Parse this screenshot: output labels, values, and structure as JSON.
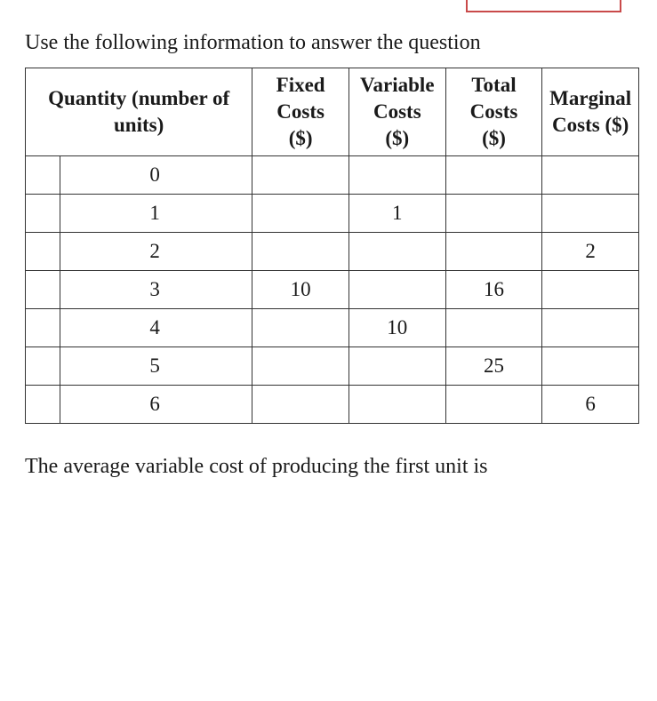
{
  "intro": "Use the following information to answer the question",
  "table": {
    "type": "table",
    "columns": [
      "Quantity (number of units)",
      "Fixed Costs ($)",
      "Variable Costs ($)",
      "Total Costs ($)",
      "Marginal Costs ($)"
    ],
    "header_lines": {
      "col0_l1": "Quantity (number of",
      "col0_l2": "units)",
      "col1_l1": "Fixed",
      "col1_l2": "Costs",
      "col1_l3": "($)",
      "col2_l1": "Variable",
      "col2_l2": "Costs",
      "col2_l3": "($)",
      "col3_l1": "Total",
      "col3_l2": "Costs",
      "col3_l3": "($)",
      "col4_l1": "Marginal",
      "col4_l2": "Costs ($)"
    },
    "rows": [
      {
        "quantity": "0",
        "fixed": "",
        "variable": "",
        "total": "",
        "marginal": ""
      },
      {
        "quantity": "1",
        "fixed": "",
        "variable": "1",
        "total": "",
        "marginal": ""
      },
      {
        "quantity": "2",
        "fixed": "",
        "variable": "",
        "total": "",
        "marginal": "2"
      },
      {
        "quantity": "3",
        "fixed": "10",
        "variable": "",
        "total": "16",
        "marginal": ""
      },
      {
        "quantity": "4",
        "fixed": "",
        "variable": "10",
        "total": "",
        "marginal": ""
      },
      {
        "quantity": "5",
        "fixed": "",
        "variable": "",
        "total": "25",
        "marginal": ""
      },
      {
        "quantity": "6",
        "fixed": "",
        "variable": "",
        "total": "",
        "marginal": "6"
      }
    ],
    "border_color": "#333333",
    "background_color": "#ffffff",
    "font_size": 23,
    "header_fontweight": "bold"
  },
  "question": "The average variable cost of producing the first unit is",
  "colors": {
    "text": "#1a1a1a",
    "background": "#ffffff",
    "red_box": "#c94a4a"
  }
}
